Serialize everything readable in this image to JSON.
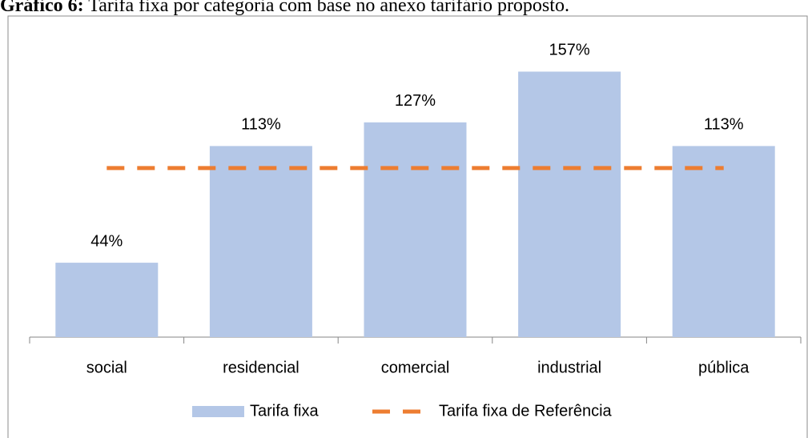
{
  "chart_data": {
    "type": "bar",
    "title_prefix": "Gráfico 6:",
    "title": "Tarifa fixa por categoria com base no anexo tarifário proposto.",
    "categories": [
      "social",
      "residencial",
      "comercial",
      "industrial",
      "pública"
    ],
    "series": [
      {
        "name": "Tarifa fixa",
        "type": "bar",
        "color": "#b4c7e7",
        "values": [
          44,
          113,
          127,
          157,
          113
        ],
        "value_labels": [
          "44%",
          "113%",
          "127%",
          "157%",
          "113%"
        ]
      },
      {
        "name": "Tarifa fixa de Referência",
        "type": "line",
        "color": "#ed7d31",
        "dashed": true,
        "values": [
          100,
          100,
          100,
          100,
          100
        ]
      }
    ],
    "ylim": [
      0,
      170
    ],
    "legend": "bottom"
  }
}
